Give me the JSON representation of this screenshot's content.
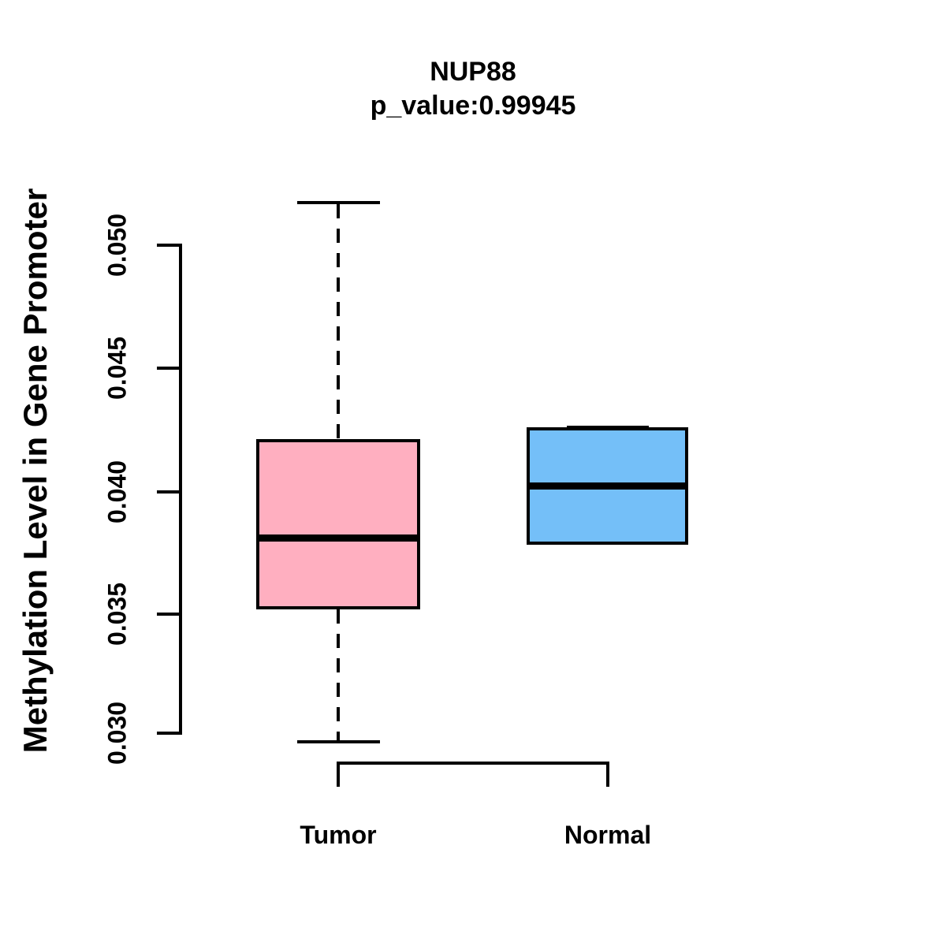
{
  "chart_data": {
    "type": "boxplot",
    "title": "NUP88",
    "subtitle": "p_value:0.99945",
    "ylabel": "Methylation Level in Gene Promoter",
    "xlabel": "",
    "categories": [
      "Tumor",
      "Normal"
    ],
    "yticks": [
      "0.030",
      "0.035",
      "0.040",
      "0.045",
      "0.050"
    ],
    "ylim": [
      0.0296,
      0.0517
    ],
    "grid": false,
    "legend": "none",
    "series": [
      {
        "name": "Tumor",
        "color": "#FFAFC0",
        "border_color": "#000000",
        "whisker_low": 0.0296,
        "q1": 0.0351,
        "median": 0.038,
        "q3": 0.042,
        "whisker_high": 0.0517,
        "outliers": []
      },
      {
        "name": "Normal",
        "color": "#74BFF8",
        "border_color": "#000000",
        "whisker_low": 0.0377,
        "q1": 0.0377,
        "median": 0.0401,
        "q3": 0.0425,
        "whisker_high": 0.0425,
        "outliers": []
      }
    ]
  }
}
